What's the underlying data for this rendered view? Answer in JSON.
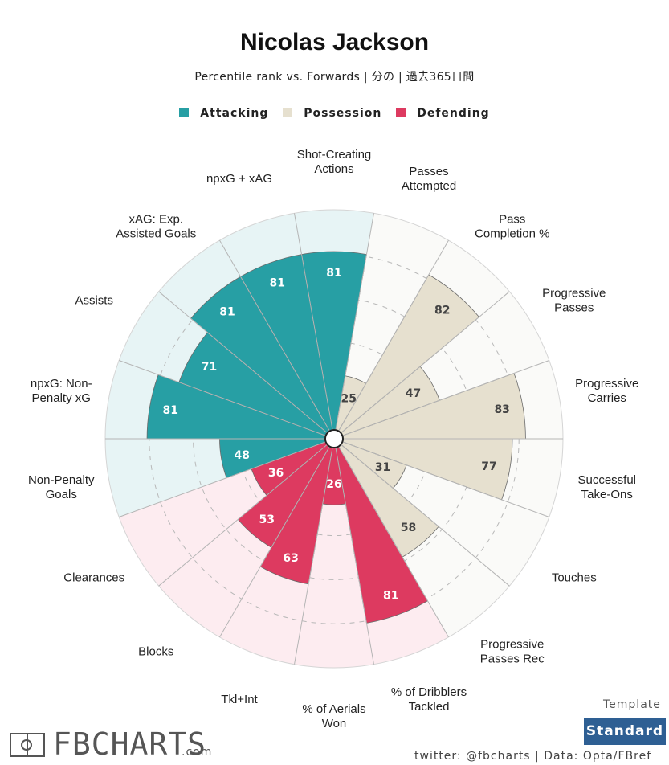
{
  "title": "Nicolas Jackson",
  "subtitle": "Percentile rank vs. Forwards | 分の | 過去365日間",
  "legend": [
    {
      "label": "Attacking",
      "color": "#279fa4"
    },
    {
      "label": "Possession",
      "color": "#e6e0cf"
    },
    {
      "label": "Defending",
      "color": "#dd3a60"
    }
  ],
  "chart_data": {
    "type": "polar-bar",
    "scale_max": 100,
    "categories": [
      {
        "lines": [
          "Shot-Creating",
          "Actions"
        ],
        "value": 81,
        "group": "Attacking"
      },
      {
        "lines": [
          "Passes",
          "Attempted"
        ],
        "value": 25,
        "group": "Possession"
      },
      {
        "lines": [
          "Pass",
          "Completion %"
        ],
        "value": 82,
        "group": "Possession"
      },
      {
        "lines": [
          "Progressive",
          "Passes"
        ],
        "value": 47,
        "group": "Possession"
      },
      {
        "lines": [
          "Progressive",
          "Carries"
        ],
        "value": 83,
        "group": "Possession"
      },
      {
        "lines": [
          "Successful",
          "Take-Ons"
        ],
        "value": 77,
        "group": "Possession"
      },
      {
        "lines": [
          "Touches"
        ],
        "value": 31,
        "group": "Possession"
      },
      {
        "lines": [
          "Progressive",
          "Passes Rec"
        ],
        "value": 58,
        "group": "Possession"
      },
      {
        "lines": [
          "% of Dribblers",
          "Tackled"
        ],
        "value": 81,
        "group": "Defending"
      },
      {
        "lines": [
          "% of Aerials",
          "Won"
        ],
        "value": 26,
        "group": "Defending"
      },
      {
        "lines": [
          "Tkl+Int"
        ],
        "value": 63,
        "group": "Defending"
      },
      {
        "lines": [
          "Blocks"
        ],
        "value": 53,
        "group": "Defending"
      },
      {
        "lines": [
          "Clearances"
        ],
        "value": 36,
        "group": "Defending"
      },
      {
        "lines": [
          "Non-Penalty",
          "Goals"
        ],
        "value": 48,
        "group": "Attacking"
      },
      {
        "lines": [
          "npxG: Non-",
          "Penalty xG"
        ],
        "value": 81,
        "group": "Attacking"
      },
      {
        "lines": [
          "Assists"
        ],
        "value": 71,
        "group": "Attacking"
      },
      {
        "lines": [
          "xAG: Exp.",
          "Assisted Goals"
        ],
        "value": 81,
        "group": "Attacking"
      },
      {
        "lines": [
          "npxG + xAG"
        ],
        "value": 81,
        "group": "Attacking"
      }
    ],
    "group_styles": {
      "Attacking": {
        "fill": "#279fa4",
        "bg": "#e7f4f5",
        "text": "#ffffff"
      },
      "Possession": {
        "fill": "#e6e0cf",
        "bg": "#fafaf8",
        "text": "#444444"
      },
      "Defending": {
        "fill": "#dd3a60",
        "bg": "#fdecf0",
        "text": "#ffffff"
      }
    }
  },
  "template": {
    "label": "Template",
    "button": "Standard"
  },
  "credit": "twitter: @fbcharts | Data: Opta/FBref",
  "logo": {
    "text": "FBCHARTS",
    "suffix": ".com"
  }
}
